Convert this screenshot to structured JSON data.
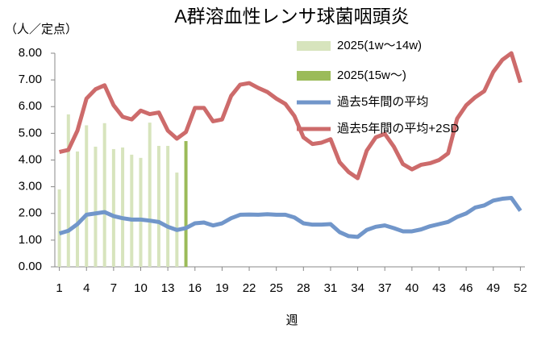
{
  "chart_data": {
    "type": "bar_line",
    "title": "A群溶血性レンサ球菌咽頭炎",
    "y_label": "（人／定点）",
    "x_label": "週",
    "x": [
      1,
      2,
      3,
      4,
      5,
      6,
      7,
      8,
      9,
      10,
      11,
      12,
      13,
      14,
      15,
      16,
      17,
      18,
      19,
      20,
      21,
      22,
      23,
      24,
      25,
      26,
      27,
      28,
      29,
      30,
      31,
      32,
      33,
      34,
      35,
      36,
      37,
      38,
      39,
      40,
      41,
      42,
      43,
      44,
      45,
      46,
      47,
      48,
      49,
      50,
      51,
      52
    ],
    "xlim": [
      0.5,
      52.5
    ],
    "xticks": [
      1,
      4,
      7,
      10,
      13,
      16,
      19,
      22,
      25,
      28,
      31,
      34,
      37,
      40,
      43,
      46,
      49,
      52
    ],
    "ylim": [
      0,
      8
    ],
    "yticks": [
      {
        "value": 0,
        "label": "0.00"
      },
      {
        "value": 1,
        "label": "1.00"
      },
      {
        "value": 2,
        "label": "2.00"
      },
      {
        "value": 3,
        "label": "3.00"
      },
      {
        "value": 4,
        "label": "4.00"
      },
      {
        "value": 5,
        "label": "5.00"
      },
      {
        "value": 6,
        "label": "6.00"
      },
      {
        "value": 7,
        "label": "7.00"
      },
      {
        "value": 8,
        "label": "8.00"
      }
    ],
    "grid": false,
    "legend": "top-right",
    "series": [
      {
        "name": "2025(1w〜14w)",
        "kind": "bar",
        "color": "#d7e4bd",
        "values": [
          2.9,
          5.71,
          4.32,
          5.3,
          4.5,
          5.38,
          4.41,
          4.47,
          4.2,
          4.08,
          5.4,
          4.53,
          4.53,
          3.53,
          null,
          null,
          null,
          null,
          null,
          null,
          null,
          null,
          null,
          null,
          null,
          null,
          null,
          null,
          null,
          null,
          null,
          null,
          null,
          null,
          null,
          null,
          null,
          null,
          null,
          null,
          null,
          null,
          null,
          null,
          null,
          null,
          null,
          null,
          null,
          null,
          null,
          null
        ]
      },
      {
        "name": "2025(15w〜)",
        "kind": "bar",
        "color": "#9bbb59",
        "values": [
          null,
          null,
          null,
          null,
          null,
          null,
          null,
          null,
          null,
          null,
          null,
          null,
          null,
          null,
          4.71,
          null,
          null,
          null,
          null,
          null,
          null,
          null,
          null,
          null,
          null,
          null,
          null,
          null,
          null,
          null,
          null,
          null,
          null,
          null,
          null,
          null,
          null,
          null,
          null,
          null,
          null,
          null,
          null,
          null,
          null,
          null,
          null,
          null,
          null,
          null,
          null,
          null
        ]
      },
      {
        "name": "過去5年間の平均",
        "kind": "line",
        "color": "#7196ca",
        "values": [
          1.25,
          1.35,
          1.6,
          1.95,
          2.0,
          2.05,
          1.9,
          1.82,
          1.77,
          1.77,
          1.73,
          1.68,
          1.5,
          1.38,
          1.45,
          1.63,
          1.66,
          1.55,
          1.63,
          1.82,
          1.95,
          1.96,
          1.95,
          1.97,
          1.95,
          1.95,
          1.85,
          1.63,
          1.58,
          1.58,
          1.6,
          1.3,
          1.15,
          1.12,
          1.38,
          1.5,
          1.55,
          1.45,
          1.33,
          1.33,
          1.4,
          1.52,
          1.6,
          1.68,
          1.87,
          2.0,
          2.22,
          2.3,
          2.48,
          2.55,
          2.58,
          2.1
        ]
      },
      {
        "name": "過去5年間の平均+2SD",
        "kind": "line",
        "color": "#cd6b6b",
        "values": [
          4.3,
          4.38,
          5.1,
          6.3,
          6.65,
          6.8,
          6.05,
          5.62,
          5.52,
          5.85,
          5.72,
          5.78,
          5.1,
          4.8,
          5.05,
          5.95,
          5.95,
          5.45,
          5.52,
          6.4,
          6.82,
          6.88,
          6.7,
          6.55,
          6.3,
          6.1,
          5.65,
          4.85,
          4.6,
          4.65,
          4.78,
          3.92,
          3.55,
          3.32,
          4.35,
          4.85,
          4.98,
          4.5,
          3.85,
          3.65,
          3.82,
          3.88,
          4.0,
          4.25,
          5.55,
          6.05,
          6.35,
          6.58,
          7.3,
          7.75,
          8.0,
          6.9
        ]
      }
    ]
  }
}
